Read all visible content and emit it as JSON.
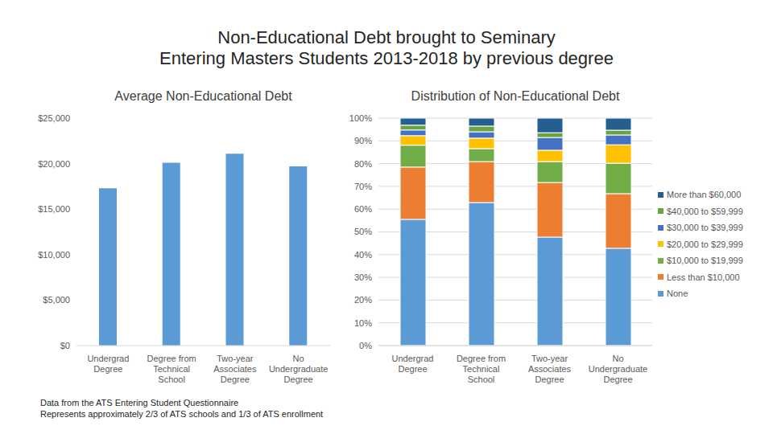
{
  "title": "Non-Educational Debt brought to Seminary",
  "subtitle": "Entering Masters Students 2013-2018 by previous degree",
  "notes": [
    "Data from the ATS Entering Student Questionnaire",
    "Represents approximately 2/3 of ATS schools and 1/3 of ATS enrollment"
  ],
  "chart_data": [
    {
      "type": "bar",
      "title": "Average Non-Educational Debt",
      "categories": [
        "Undergrad Degree",
        "Degree from Technical School",
        "Two-year Associates Degree",
        "No Undergraduate Degree"
      ],
      "values": [
        17300,
        20100,
        21100,
        19700
      ],
      "color": "#5b9bd5",
      "ylim": [
        0,
        25000
      ],
      "yticks": [
        {
          "value": 0,
          "label": "$0"
        },
        {
          "value": 5000,
          "label": "$5,000"
        },
        {
          "value": 10000,
          "label": "$10,000"
        },
        {
          "value": 15000,
          "label": "$15,000"
        },
        {
          "value": 20000,
          "label": "$20,000"
        },
        {
          "value": 25000,
          "label": "$25,000"
        }
      ],
      "grid": false
    },
    {
      "type": "bar",
      "title": "Distribution of Non-Educational Debt",
      "stacked": true,
      "legend": "right",
      "grid": true,
      "categories": [
        "Undergrad Degree",
        "Degree from Technical School",
        "Two-year Associates Degree",
        "No Undergraduate Degree"
      ],
      "series": [
        {
          "name": "None",
          "color": "#5b9bd5",
          "values": [
            55.5,
            62.9,
            47.7,
            42.8
          ]
        },
        {
          "name": "Less than $10,000",
          "color": "#ed7d31",
          "values": [
            23,
            18,
            24,
            24
          ]
        },
        {
          "name": "$10,000 to $19,999",
          "color": "#70ad47",
          "values": [
            9.6,
            5.7,
            9.2,
            13.4
          ]
        },
        {
          "name": "$20,000 to $29,999",
          "color": "#ffc000",
          "values": [
            4.2,
            4.6,
            5,
            8.1
          ]
        },
        {
          "name": "$30,000 to $39,999",
          "color": "#4472c4",
          "values": [
            2.5,
            2.8,
            5.6,
            4.3
          ]
        },
        {
          "name": "$40,000 to $59,999",
          "color": "#6aa341",
          "values": [
            2.1,
            2.5,
            2.1,
            2.1
          ]
        },
        {
          "name": "More than $60,000",
          "color": "#255e91",
          "values": [
            3.1,
            3.5,
            6.4,
            5.3
          ]
        }
      ],
      "ylim": [
        0,
        100
      ],
      "yticks": [
        {
          "value": 0,
          "label": "0%"
        },
        {
          "value": 10,
          "label": "10%"
        },
        {
          "value": 20,
          "label": "20%"
        },
        {
          "value": 30,
          "label": "30%"
        },
        {
          "value": 40,
          "label": "40%"
        },
        {
          "value": 50,
          "label": "50%"
        },
        {
          "value": 60,
          "label": "60%"
        },
        {
          "value": 70,
          "label": "70%"
        },
        {
          "value": 80,
          "label": "80%"
        },
        {
          "value": 90,
          "label": "90%"
        },
        {
          "value": 100,
          "label": "100%"
        }
      ]
    }
  ]
}
